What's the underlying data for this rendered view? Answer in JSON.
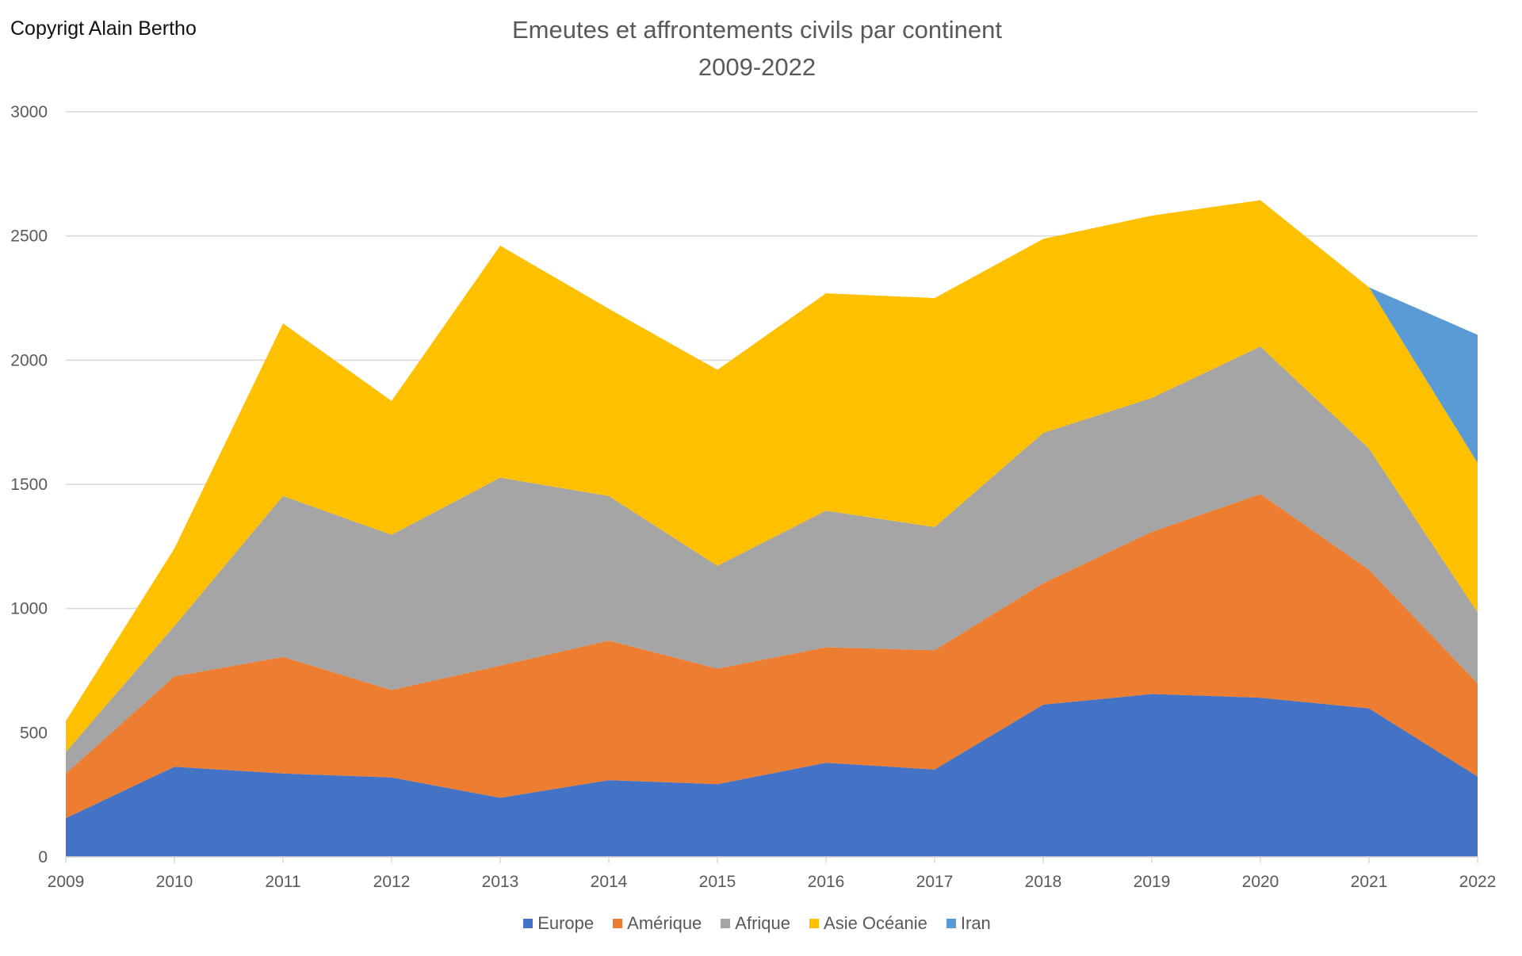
{
  "copyright": "Copyrigt Alain Bertho",
  "chart_data": {
    "type": "area",
    "stacked": true,
    "title": "Emeutes et affrontements civils par continent",
    "subtitle": "2009-2022",
    "xlabel": "",
    "ylabel": "",
    "categories": [
      "2009",
      "2010",
      "2011",
      "2012",
      "2013",
      "2014",
      "2015",
      "2016",
      "2017",
      "2018",
      "2019",
      "2020",
      "2021",
      "2022"
    ],
    "ylim": [
      0,
      3000
    ],
    "yticks": [
      0,
      500,
      1000,
      1500,
      2000,
      2500,
      3000
    ],
    "grid": true,
    "legend": "bottom",
    "series": [
      {
        "name": "Europe",
        "color": "#4472C4",
        "values": [
          156,
          363,
          336,
          320,
          238,
          309,
          293,
          379,
          352,
          613,
          656,
          641,
          598,
          324
        ]
      },
      {
        "name": "Amérique",
        "color": "#ED7D31",
        "values": [
          180,
          364,
          469,
          352,
          532,
          562,
          465,
          465,
          480,
          489,
          653,
          820,
          558,
          375
        ]
      },
      {
        "name": "Afrique",
        "color": "#A5A5A5",
        "values": [
          86,
          203,
          648,
          625,
          757,
          582,
          414,
          550,
          496,
          605,
          539,
          594,
          488,
          285
        ]
      },
      {
        "name": "Asie Océanie",
        "color": "#FFC000",
        "values": [
          125,
          312,
          695,
          539,
          934,
          754,
          789,
          875,
          922,
          781,
          734,
          589,
          649,
          602
        ]
      },
      {
        "name": "Iran",
        "color": "#5B9BD5",
        "values": [
          0,
          0,
          0,
          0,
          0,
          0,
          0,
          0,
          0,
          0,
          0,
          0,
          0,
          516
        ]
      }
    ]
  }
}
